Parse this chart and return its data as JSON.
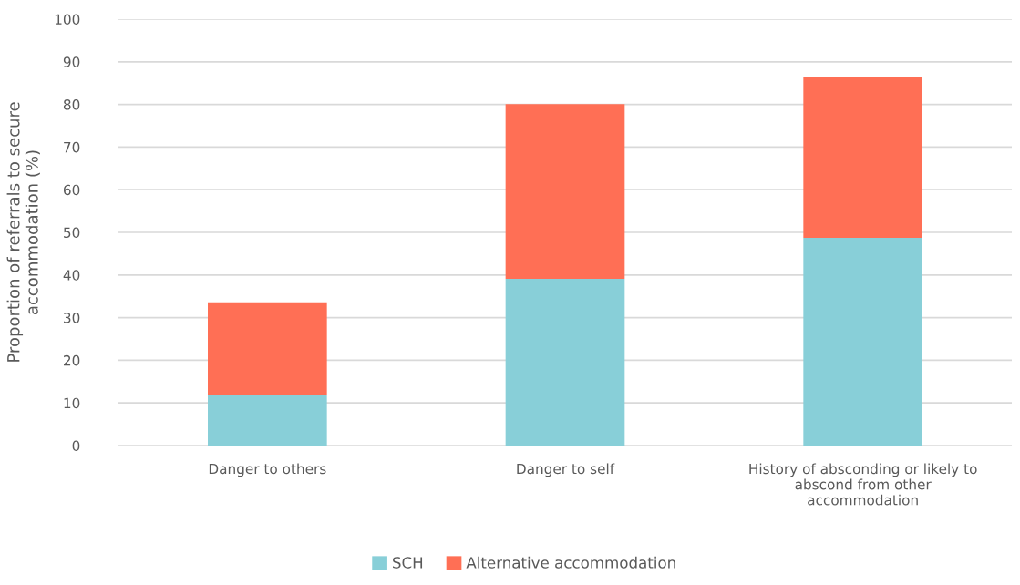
{
  "chart_data": {
    "type": "bar",
    "stacked": true,
    "ylabel": "Proportion of referrals to secure\naccommodation (%)",
    "categories": [
      "Danger to others",
      "Danger to self",
      "History of absconding or likely to\nabscond from other\naccommodation"
    ],
    "series": [
      {
        "name": "SCH",
        "color": "#88cfd8",
        "values": [
          11.8,
          39.1,
          48.7
        ]
      },
      {
        "name": "Alternative accommodation",
        "color": "#ff6f55",
        "values": [
          21.8,
          41.0,
          37.7
        ]
      }
    ],
    "ylim": [
      0,
      100
    ],
    "yticks": [
      0,
      10,
      20,
      30,
      40,
      50,
      60,
      70,
      80,
      90,
      100
    ],
    "grid": "y",
    "legend": "bottom"
  }
}
